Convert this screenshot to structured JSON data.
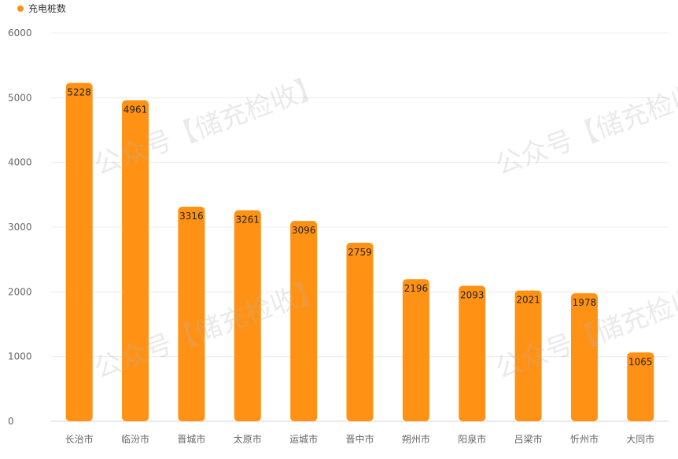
{
  "legend": {
    "label": "充电桩数",
    "color": "#FF9214"
  },
  "watermark": "公众号【储充检收】",
  "chart_data": {
    "type": "bar",
    "categories": [
      "长治市",
      "临汾市",
      "晋城市",
      "太原市",
      "运城市",
      "晋中市",
      "朔州市",
      "阳泉市",
      "吕梁市",
      "忻州市",
      "大同市"
    ],
    "series": [
      {
        "name": "充电桩数",
        "values": [
          5228,
          4961,
          3316,
          3261,
          3096,
          2759,
          2196,
          2093,
          2021,
          1978,
          1065
        ]
      }
    ],
    "ylim": [
      0,
      6000
    ],
    "yticks": [
      0,
      1000,
      2000,
      3000,
      4000,
      5000,
      6000
    ],
    "grid": true,
    "legend_position": "top-left",
    "bar_color": "#FF9214",
    "data_labels": true
  }
}
